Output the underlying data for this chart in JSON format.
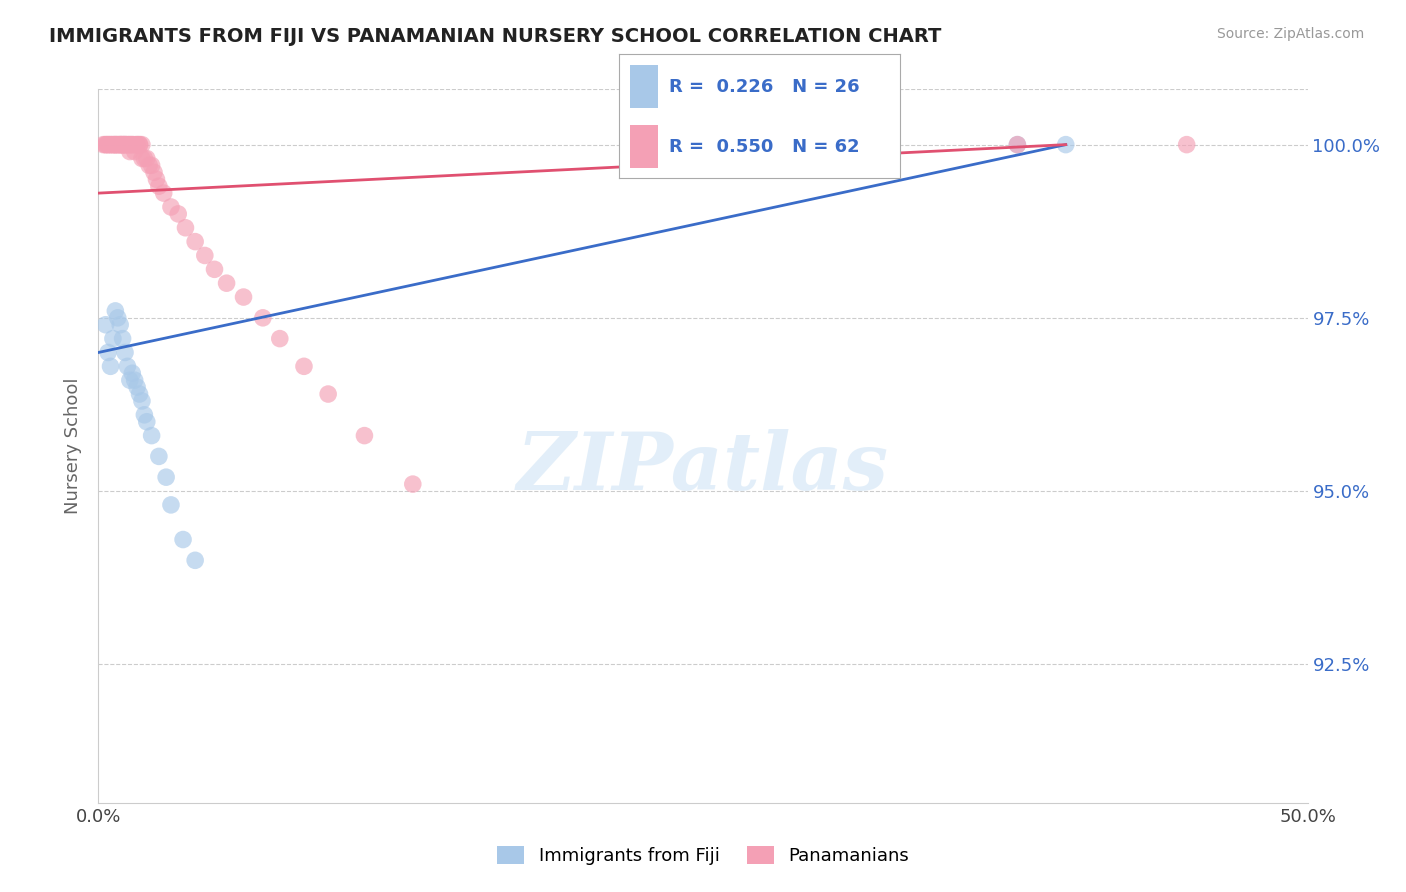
{
  "title": "IMMIGRANTS FROM FIJI VS PANAMANIAN NURSERY SCHOOL CORRELATION CHART",
  "source_text": "Source: ZipAtlas.com",
  "ylabel": "Nursery School",
  "xlabel": "",
  "xlim": [
    0.0,
    0.5
  ],
  "ylim": [
    0.905,
    1.008
  ],
  "yticks": [
    0.925,
    0.95,
    0.975,
    1.0
  ],
  "ytick_labels": [
    "92.5%",
    "95.0%",
    "97.5%",
    "100.0%"
  ],
  "xticks": [
    0.0,
    0.1,
    0.2,
    0.3,
    0.4,
    0.5
  ],
  "xtick_labels": [
    "0.0%",
    "",
    "",
    "",
    "",
    "50.0%"
  ],
  "blue_R": 0.226,
  "blue_N": 26,
  "pink_R": 0.55,
  "pink_N": 62,
  "blue_label": "Immigrants from Fiji",
  "pink_label": "Panamanians",
  "blue_color": "#a8c8e8",
  "pink_color": "#f4a0b5",
  "blue_line_color": "#3a6cc8",
  "pink_line_color": "#e05070",
  "blue_scatter_x": [
    0.003,
    0.004,
    0.005,
    0.006,
    0.007,
    0.008,
    0.009,
    0.01,
    0.011,
    0.012,
    0.013,
    0.014,
    0.015,
    0.016,
    0.017,
    0.018,
    0.019,
    0.02,
    0.022,
    0.025,
    0.028,
    0.03,
    0.035,
    0.04,
    0.38,
    0.4
  ],
  "blue_scatter_y": [
    0.974,
    0.97,
    0.968,
    0.972,
    0.976,
    0.975,
    0.974,
    0.972,
    0.97,
    0.968,
    0.966,
    0.967,
    0.966,
    0.965,
    0.964,
    0.963,
    0.961,
    0.96,
    0.958,
    0.955,
    0.952,
    0.948,
    0.943,
    0.94,
    1.0,
    1.0
  ],
  "pink_scatter_x": [
    0.002,
    0.003,
    0.003,
    0.004,
    0.004,
    0.005,
    0.005,
    0.006,
    0.006,
    0.007,
    0.007,
    0.007,
    0.008,
    0.008,
    0.009,
    0.009,
    0.009,
    0.01,
    0.01,
    0.01,
    0.011,
    0.011,
    0.011,
    0.012,
    0.012,
    0.013,
    0.013,
    0.013,
    0.014,
    0.014,
    0.015,
    0.015,
    0.016,
    0.016,
    0.017,
    0.017,
    0.018,
    0.018,
    0.019,
    0.02,
    0.021,
    0.022,
    0.023,
    0.024,
    0.025,
    0.027,
    0.03,
    0.033,
    0.036,
    0.04,
    0.044,
    0.048,
    0.053,
    0.06,
    0.068,
    0.075,
    0.085,
    0.095,
    0.11,
    0.13,
    0.38,
    0.45
  ],
  "pink_scatter_y": [
    1.0,
    1.0,
    1.0,
    1.0,
    1.0,
    1.0,
    1.0,
    1.0,
    1.0,
    1.0,
    1.0,
    1.0,
    1.0,
    1.0,
    1.0,
    1.0,
    1.0,
    1.0,
    1.0,
    1.0,
    1.0,
    1.0,
    1.0,
    1.0,
    1.0,
    1.0,
    1.0,
    0.999,
    1.0,
    1.0,
    1.0,
    0.999,
    1.0,
    1.0,
    1.0,
    1.0,
    1.0,
    0.998,
    0.998,
    0.998,
    0.997,
    0.997,
    0.996,
    0.995,
    0.994,
    0.993,
    0.991,
    0.99,
    0.988,
    0.986,
    0.984,
    0.982,
    0.98,
    0.978,
    0.975,
    0.972,
    0.968,
    0.964,
    0.958,
    0.951,
    1.0,
    1.0
  ],
  "blue_trend_x": [
    0.0,
    0.4
  ],
  "blue_trend_y": [
    0.97,
    1.0
  ],
  "pink_trend_x": [
    0.0,
    0.4
  ],
  "pink_trend_y": [
    0.993,
    1.0
  ],
  "watermark_text": "ZIPatlas",
  "background_color": "#ffffff",
  "legend_border_color": "#cccccc",
  "ytick_color": "#3a6cc8"
}
